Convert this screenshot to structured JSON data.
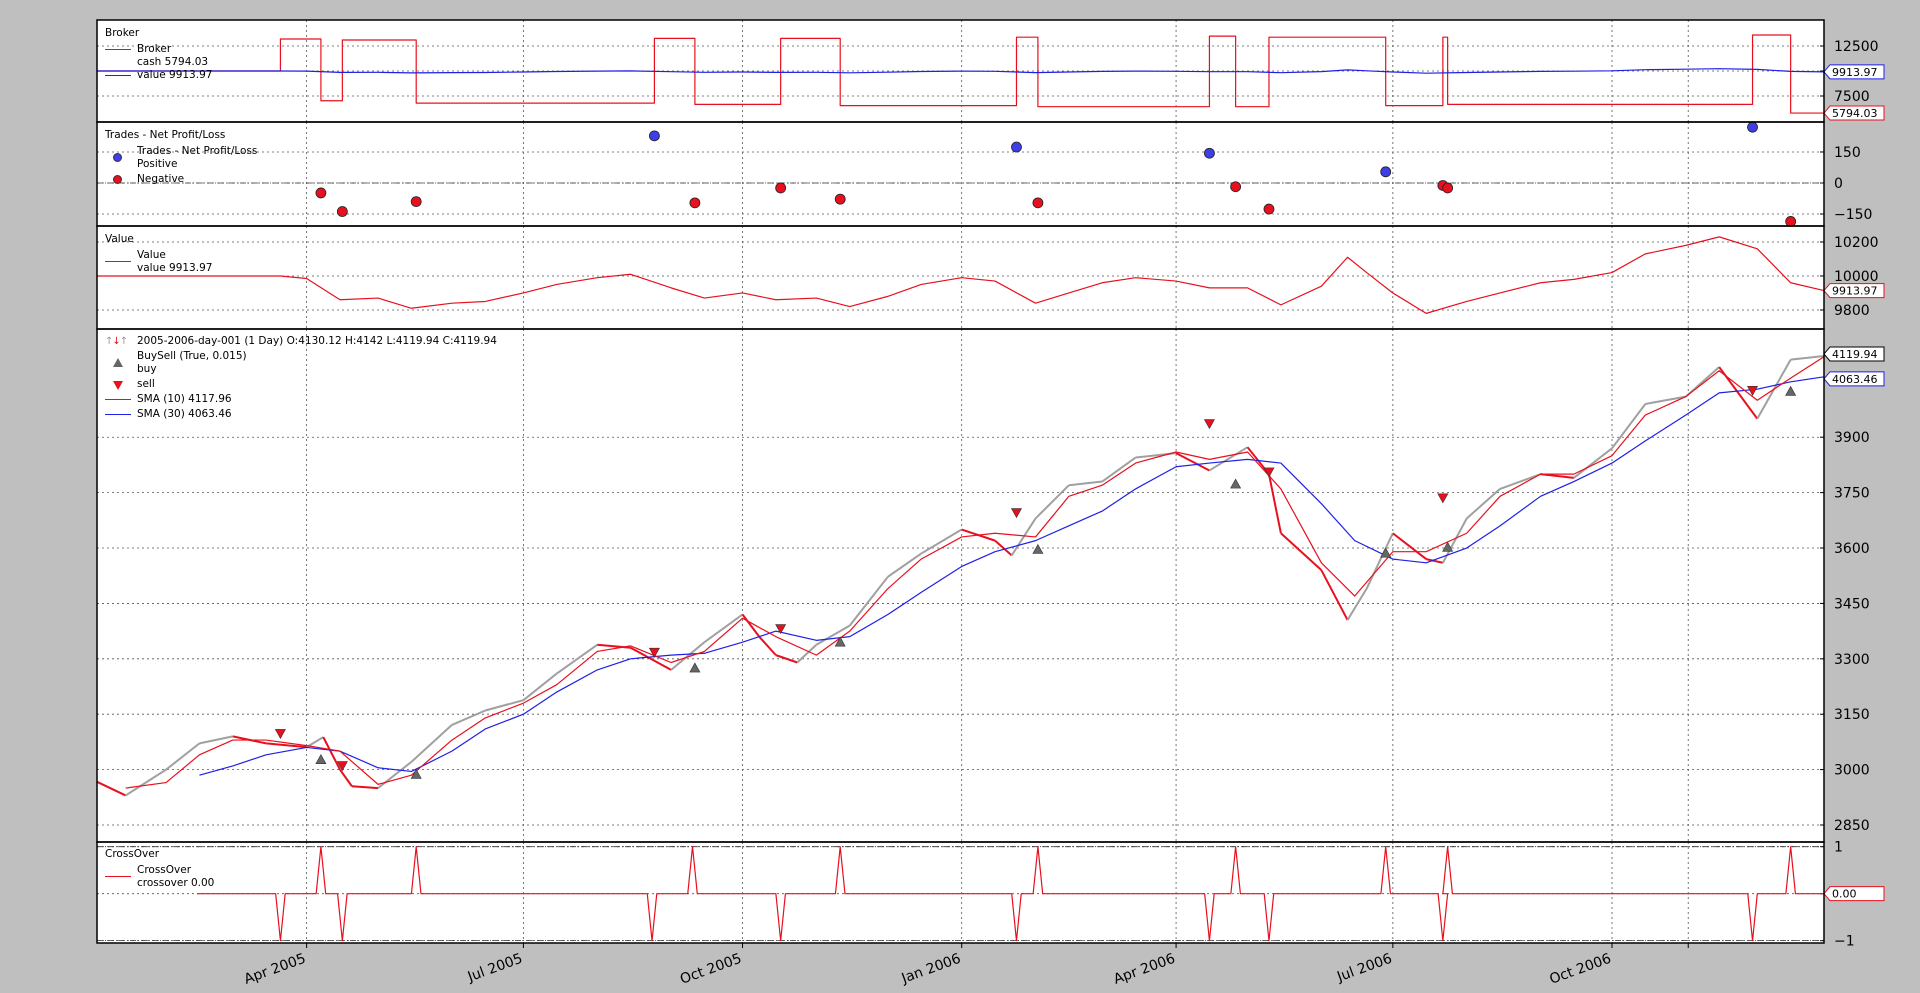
{
  "chart_data": [
    {
      "type": "line",
      "panel": "broker",
      "title": "Broker",
      "legend": {
        "header": "Broker",
        "cash_label": "cash 5794.03",
        "value_label": "value 9913.97"
      },
      "ylim": [
        4900,
        15100
      ],
      "yticks": [
        7500,
        10000,
        12500
      ],
      "ytick_labels": [
        "7500",
        "",
        "12500"
      ],
      "last_value_tags": {
        "value": "9913.97",
        "cash": "5794.03"
      },
      "colors": {
        "cash": "#e8101e",
        "value": "#1f1fe8"
      },
      "cash_steps": [
        [
          "2005-01-03",
          10000
        ],
        [
          "2005-03-21",
          13200
        ],
        [
          "2005-04-07",
          7025
        ],
        [
          "2005-04-16",
          13100
        ],
        [
          "2005-05-17",
          6790
        ],
        [
          "2005-08-25",
          13260
        ],
        [
          "2005-09-11",
          6660
        ],
        [
          "2005-10-17",
          13260
        ],
        [
          "2005-11-11",
          6540
        ],
        [
          "2006-01-24",
          13380
        ],
        [
          "2006-02-02",
          6430
        ],
        [
          "2006-04-15",
          13490
        ],
        [
          "2006-04-26",
          6430
        ],
        [
          "2006-05-10",
          13380
        ],
        [
          "2006-06-28",
          6540
        ],
        [
          "2006-07-22",
          13380
        ],
        [
          "2006-07-24",
          6660
        ],
        [
          "2006-11-29",
          13600
        ],
        [
          "2006-12-15",
          5794.03
        ]
      ]
    },
    {
      "type": "scatter",
      "panel": "trades",
      "title": "Trades - Net Profit/Loss",
      "legend": {
        "header": "Trades - Net Profit/Loss",
        "positive": "Positive",
        "negative": "Negative"
      },
      "ylim": [
        -208,
        295
      ],
      "yticks": [
        -150,
        0,
        150
      ],
      "ytick_labels": [
        "−150",
        "0",
        "150"
      ],
      "colors": {
        "positive": "#3f3fe8",
        "negative": "#e8101e"
      },
      "points": [
        [
          "2005-04-07",
          -48
        ],
        [
          "2005-04-16",
          -138
        ],
        [
          "2005-05-17",
          -90
        ],
        [
          "2005-08-25",
          228
        ],
        [
          "2005-09-11",
          -96
        ],
        [
          "2005-10-17",
          -24
        ],
        [
          "2005-11-11",
          -78
        ],
        [
          "2006-01-24",
          174
        ],
        [
          "2006-02-02",
          -96
        ],
        [
          "2006-04-15",
          144
        ],
        [
          "2006-04-26",
          -18
        ],
        [
          "2006-05-10",
          -126
        ],
        [
          "2006-06-28",
          54
        ],
        [
          "2006-07-22",
          -12
        ],
        [
          "2006-07-24",
          -24
        ],
        [
          "2006-11-29",
          270
        ],
        [
          "2006-12-15",
          -186
        ]
      ]
    },
    {
      "type": "line",
      "panel": "value",
      "title": "Value",
      "legend": {
        "header": "Value",
        "label": "value 9913.97"
      },
      "ylim": [
        9688,
        10294
      ],
      "yticks": [
        9800,
        10000,
        10200
      ],
      "ytick_labels": [
        "9800",
        "10000",
        "10200"
      ],
      "last_value_tag": "9913.97",
      "color": "#e8101e",
      "values": [
        [
          "2005-01-03",
          10000
        ],
        [
          "2005-03-21",
          10000
        ],
        [
          "2005-04-01",
          9985
        ],
        [
          "2005-04-15",
          9860
        ],
        [
          "2005-05-01",
          9870
        ],
        [
          "2005-05-15",
          9810
        ],
        [
          "2005-06-01",
          9840
        ],
        [
          "2005-06-15",
          9850
        ],
        [
          "2005-07-01",
          9900
        ],
        [
          "2005-07-15",
          9950
        ],
        [
          "2005-08-01",
          9990
        ],
        [
          "2005-08-15",
          10010
        ],
        [
          "2005-09-01",
          9930
        ],
        [
          "2005-09-15",
          9870
        ],
        [
          "2005-10-01",
          9900
        ],
        [
          "2005-10-15",
          9860
        ],
        [
          "2005-11-01",
          9870
        ],
        [
          "2005-11-15",
          9820
        ],
        [
          "2005-12-01",
          9880
        ],
        [
          "2005-12-15",
          9950
        ],
        [
          "2006-01-01",
          9990
        ],
        [
          "2006-01-15",
          9970
        ],
        [
          "2006-02-01",
          9840
        ],
        [
          "2006-02-15",
          9900
        ],
        [
          "2006-03-01",
          9960
        ],
        [
          "2006-03-15",
          9990
        ],
        [
          "2006-04-01",
          9970
        ],
        [
          "2006-04-15",
          9930
        ],
        [
          "2006-05-01",
          9930
        ],
        [
          "2006-05-15",
          9830
        ],
        [
          "2006-06-01",
          9940
        ],
        [
          "2006-06-12",
          10110
        ],
        [
          "2006-06-20",
          10020
        ],
        [
          "2006-07-01",
          9900
        ],
        [
          "2006-07-15",
          9780
        ],
        [
          "2006-08-01",
          9850
        ],
        [
          "2006-08-15",
          9900
        ],
        [
          "2006-09-01",
          9960
        ],
        [
          "2006-09-15",
          9980
        ],
        [
          "2006-10-01",
          10020
        ],
        [
          "2006-10-15",
          10130
        ],
        [
          "2006-11-01",
          10180
        ],
        [
          "2006-11-15",
          10230
        ],
        [
          "2006-12-01",
          10160
        ],
        [
          "2006-12-15",
          9960
        ],
        [
          "2006-12-29",
          9913.97
        ]
      ]
    },
    {
      "type": "line",
      "panel": "price",
      "legend": {
        "data_label": "2005-2006-day-001 (1 Day) O:4130.12 H:4142 L:4119.94 C:4119.94",
        "buysell_label": "BuySell (True, 0.015)",
        "buy_label": "buy",
        "sell_label": "sell",
        "sma10_label": "SMA (10) 4117.96",
        "sma30_label": "SMA (30) 4063.46"
      },
      "ylim": [
        2804,
        4193
      ],
      "yticks": [
        2850,
        3000,
        3150,
        3300,
        3450,
        3600,
        3750,
        3900
      ],
      "ytick_labels": [
        "2850",
        "3000",
        "3150",
        "3300",
        "3450",
        "3600",
        "3750",
        "3900"
      ],
      "last_value_tags": {
        "close": "4119.94",
        "sma30": "4063.46"
      },
      "colors": {
        "close": "#a0a0a0",
        "down": "#e8101e",
        "sma10": "#e8101e",
        "sma30": "#1f1fe8",
        "buy": "#666666",
        "sell": "#e8101e"
      },
      "close": [
        [
          "2005-01-03",
          2967
        ],
        [
          "2005-01-15",
          2930
        ],
        [
          "2005-02-01",
          3000
        ],
        [
          "2005-02-15",
          3071
        ],
        [
          "2005-03-01",
          3090
        ],
        [
          "2005-03-15",
          3071
        ],
        [
          "2005-04-01",
          3061
        ],
        [
          "2005-04-08",
          3088
        ],
        [
          "2005-04-15",
          3000
        ],
        [
          "2005-04-20",
          2955
        ],
        [
          "2005-05-01",
          2950
        ],
        [
          "2005-05-15",
          3021
        ],
        [
          "2005-06-01",
          3121
        ],
        [
          "2005-06-15",
          3160
        ],
        [
          "2005-07-01",
          3188
        ],
        [
          "2005-07-15",
          3260
        ],
        [
          "2005-08-01",
          3338
        ],
        [
          "2005-08-15",
          3330
        ],
        [
          "2005-09-01",
          3270
        ],
        [
          "2005-09-15",
          3345
        ],
        [
          "2005-10-01",
          3420
        ],
        [
          "2005-10-08",
          3360
        ],
        [
          "2005-10-15",
          3310
        ],
        [
          "2005-10-24",
          3290
        ],
        [
          "2005-11-01",
          3338
        ],
        [
          "2005-11-15",
          3390
        ],
        [
          "2005-12-01",
          3522
        ],
        [
          "2005-12-15",
          3585
        ],
        [
          "2006-01-01",
          3650
        ],
        [
          "2006-01-15",
          3620
        ],
        [
          "2006-01-22",
          3580
        ],
        [
          "2006-02-01",
          3680
        ],
        [
          "2006-02-15",
          3770
        ],
        [
          "2006-03-01",
          3780
        ],
        [
          "2006-03-15",
          3845
        ],
        [
          "2006-04-01",
          3857
        ],
        [
          "2006-04-15",
          3810
        ],
        [
          "2006-05-01",
          3873
        ],
        [
          "2006-05-10",
          3800
        ],
        [
          "2006-05-15",
          3640
        ],
        [
          "2006-06-01",
          3540
        ],
        [
          "2006-06-12",
          3405
        ],
        [
          "2006-06-20",
          3490
        ],
        [
          "2006-07-01",
          3640
        ],
        [
          "2006-07-15",
          3570
        ],
        [
          "2006-07-22",
          3560
        ],
        [
          "2006-08-01",
          3680
        ],
        [
          "2006-08-15",
          3760
        ],
        [
          "2006-09-01",
          3800
        ],
        [
          "2006-09-15",
          3790
        ],
        [
          "2006-10-01",
          3870
        ],
        [
          "2006-10-15",
          3990
        ],
        [
          "2006-11-01",
          4010
        ],
        [
          "2006-11-15",
          4090
        ],
        [
          "2006-12-01",
          3950
        ],
        [
          "2006-12-15",
          4110
        ],
        [
          "2006-12-29",
          4119.94
        ]
      ],
      "sma10": [
        [
          "2005-01-15",
          2950
        ],
        [
          "2005-02-01",
          2965
        ],
        [
          "2005-02-15",
          3040
        ],
        [
          "2005-03-01",
          3080
        ],
        [
          "2005-03-15",
          3080
        ],
        [
          "2005-04-01",
          3065
        ],
        [
          "2005-04-15",
          3050
        ],
        [
          "2005-05-01",
          2960
        ],
        [
          "2005-05-15",
          2985
        ],
        [
          "2005-06-01",
          3080
        ],
        [
          "2005-06-15",
          3140
        ],
        [
          "2005-07-01",
          3180
        ],
        [
          "2005-07-15",
          3230
        ],
        [
          "2005-08-01",
          3320
        ],
        [
          "2005-08-15",
          3335
        ],
        [
          "2005-09-01",
          3290
        ],
        [
          "2005-09-15",
          3320
        ],
        [
          "2005-10-01",
          3410
        ],
        [
          "2005-10-15",
          3360
        ],
        [
          "2005-11-01",
          3310
        ],
        [
          "2005-11-15",
          3375
        ],
        [
          "2005-12-01",
          3490
        ],
        [
          "2005-12-15",
          3570
        ],
        [
          "2006-01-01",
          3630
        ],
        [
          "2006-01-15",
          3640
        ],
        [
          "2006-02-01",
          3630
        ],
        [
          "2006-02-15",
          3740
        ],
        [
          "2006-03-01",
          3770
        ],
        [
          "2006-03-15",
          3830
        ],
        [
          "2006-04-01",
          3860
        ],
        [
          "2006-04-15",
          3840
        ],
        [
          "2006-05-01",
          3860
        ],
        [
          "2006-05-15",
          3760
        ],
        [
          "2006-06-01",
          3560
        ],
        [
          "2006-06-15",
          3470
        ],
        [
          "2006-07-01",
          3590
        ],
        [
          "2006-07-15",
          3590
        ],
        [
          "2006-08-01",
          3640
        ],
        [
          "2006-08-15",
          3740
        ],
        [
          "2006-09-01",
          3800
        ],
        [
          "2006-09-15",
          3800
        ],
        [
          "2006-10-01",
          3850
        ],
        [
          "2006-10-15",
          3960
        ],
        [
          "2006-11-01",
          4010
        ],
        [
          "2006-11-15",
          4080
        ],
        [
          "2006-12-01",
          4000
        ],
        [
          "2006-12-15",
          4060
        ],
        [
          "2006-12-29",
          4117.96
        ]
      ],
      "sma30": [
        [
          "2005-02-15",
          2985
        ],
        [
          "2005-03-01",
          3010
        ],
        [
          "2005-03-15",
          3040
        ],
        [
          "2005-04-01",
          3060
        ],
        [
          "2005-04-15",
          3050
        ],
        [
          "2005-05-01",
          3005
        ],
        [
          "2005-05-15",
          2995
        ],
        [
          "2005-06-01",
          3050
        ],
        [
          "2005-06-15",
          3110
        ],
        [
          "2005-07-01",
          3150
        ],
        [
          "2005-07-15",
          3210
        ],
        [
          "2005-08-01",
          3270
        ],
        [
          "2005-08-15",
          3300
        ],
        [
          "2005-09-01",
          3310
        ],
        [
          "2005-09-15",
          3315
        ],
        [
          "2005-10-01",
          3345
        ],
        [
          "2005-10-15",
          3375
        ],
        [
          "2005-11-01",
          3350
        ],
        [
          "2005-11-15",
          3360
        ],
        [
          "2005-12-01",
          3420
        ],
        [
          "2005-12-15",
          3480
        ],
        [
          "2006-01-01",
          3550
        ],
        [
          "2006-01-15",
          3590
        ],
        [
          "2006-02-01",
          3620
        ],
        [
          "2006-02-15",
          3660
        ],
        [
          "2006-03-01",
          3700
        ],
        [
          "2006-03-15",
          3760
        ],
        [
          "2006-04-01",
          3820
        ],
        [
          "2006-04-15",
          3830
        ],
        [
          "2006-05-01",
          3840
        ],
        [
          "2006-05-15",
          3830
        ],
        [
          "2006-06-01",
          3720
        ],
        [
          "2006-06-15",
          3620
        ],
        [
          "2006-07-01",
          3570
        ],
        [
          "2006-07-15",
          3560
        ],
        [
          "2006-08-01",
          3600
        ],
        [
          "2006-08-15",
          3660
        ],
        [
          "2006-09-01",
          3740
        ],
        [
          "2006-09-15",
          3780
        ],
        [
          "2006-10-01",
          3830
        ],
        [
          "2006-10-15",
          3890
        ],
        [
          "2006-11-01",
          3960
        ],
        [
          "2006-11-15",
          4020
        ],
        [
          "2006-12-01",
          4030
        ],
        [
          "2006-12-15",
          4050
        ],
        [
          "2006-12-29",
          4063.46
        ]
      ],
      "buy": [
        [
          "2005-04-07",
          3027
        ],
        [
          "2005-05-17",
          2987
        ],
        [
          "2005-09-11",
          3275
        ],
        [
          "2005-11-11",
          3345
        ],
        [
          "2006-02-02",
          3596
        ],
        [
          "2006-04-26",
          3773
        ],
        [
          "2006-06-28",
          3586
        ],
        [
          "2006-07-24",
          3602
        ],
        [
          "2006-12-15",
          4024
        ]
      ],
      "sell": [
        [
          "2005-03-21",
          3098
        ],
        [
          "2005-04-16",
          3011
        ],
        [
          "2005-08-25",
          3318
        ],
        [
          "2005-10-17",
          3382
        ],
        [
          "2006-01-24",
          3696
        ],
        [
          "2006-04-15",
          3937
        ],
        [
          "2006-05-10",
          3806
        ],
        [
          "2006-07-22",
          3736
        ],
        [
          "2006-11-29",
          4027
        ]
      ]
    },
    {
      "type": "line",
      "panel": "crossover",
      "title": "CrossOver",
      "legend": {
        "header": "CrossOver",
        "series": "CrossOver",
        "label": "crossover 0.00"
      },
      "ylim": [
        -1.05,
        1.1
      ],
      "yticks": [
        -1,
        0,
        1
      ],
      "ytick_labels": [
        "−1",
        "",
        "1"
      ],
      "last_value_tag": "0.00",
      "color": "#e8101e",
      "start": "2005-02-14",
      "end": "2006-12-29",
      "events": [
        [
          "2005-03-21",
          -1
        ],
        [
          "2005-04-07",
          1
        ],
        [
          "2005-04-16",
          -1
        ],
        [
          "2005-05-17",
          1
        ],
        [
          "2005-08-24",
          -1
        ],
        [
          "2005-09-10",
          1
        ],
        [
          "2005-10-17",
          -1
        ],
        [
          "2005-11-11",
          1
        ],
        [
          "2006-01-24",
          -1
        ],
        [
          "2006-02-02",
          1
        ],
        [
          "2006-04-15",
          -1
        ],
        [
          "2006-04-26",
          1
        ],
        [
          "2006-05-10",
          -1
        ],
        [
          "2006-06-28",
          1
        ],
        [
          "2006-07-22",
          -1
        ],
        [
          "2006-07-24",
          1
        ],
        [
          "2006-11-29",
          -1
        ],
        [
          "2006-12-15",
          1
        ]
      ]
    }
  ],
  "x_axis": {
    "range": [
      "2005-01-03",
      "2006-12-29"
    ],
    "ticks": [
      [
        "2005-04-01",
        "Apr 2005"
      ],
      [
        "2005-07-01",
        "Jul 2005"
      ],
      [
        "2005-10-01",
        "Oct 2005"
      ],
      [
        "2006-01-01",
        "Jan 2006"
      ],
      [
        "2006-04-01",
        "Apr 2006"
      ],
      [
        "2006-07-01",
        "Jul 2006"
      ],
      [
        "2006-10-01",
        "Oct 2006"
      ],
      [
        "2006-11-02",
        ""
      ]
    ]
  }
}
